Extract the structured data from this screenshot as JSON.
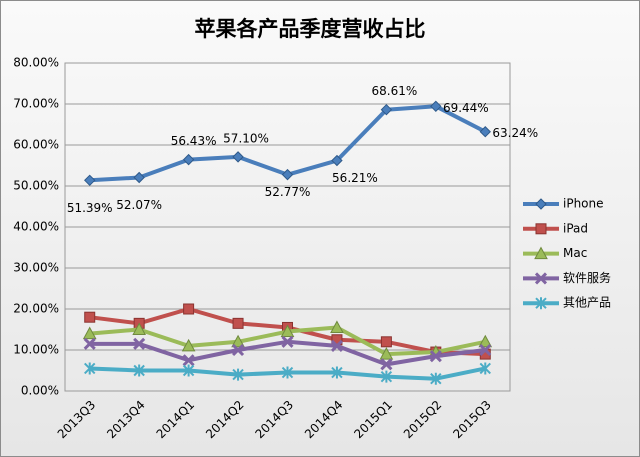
{
  "chart_data": {
    "type": "line",
    "title": "苹果各产品季度营收占比",
    "categories": [
      "2013Q3",
      "2013Q4",
      "2014Q1",
      "2014Q2",
      "2014Q3",
      "2014Q4",
      "2015Q1",
      "2015Q2",
      "2015Q3"
    ],
    "series": [
      {
        "name": "iPhone",
        "color": "#4a7ebb",
        "marker": "diamond",
        "values": [
          51.39,
          52.07,
          56.43,
          57.1,
          52.77,
          56.21,
          68.61,
          69.44,
          63.24
        ],
        "value_labels": [
          "51.39%",
          "52.07%",
          "56.43%",
          "57.10%",
          "52.77%",
          "56.21%",
          "68.61%",
          "69.44%",
          "63.24%"
        ]
      },
      {
        "name": "iPad",
        "color": "#c0504d",
        "marker": "square",
        "values": [
          18,
          16.5,
          20,
          16.5,
          15.5,
          12.5,
          12,
          9.5,
          9
        ]
      },
      {
        "name": "Mac",
        "color": "#9bbb59",
        "marker": "triangle",
        "values": [
          14,
          15,
          11,
          12,
          14.5,
          15.5,
          9,
          9.5,
          12
        ]
      },
      {
        "name": "软件服务",
        "color": "#8064a2",
        "marker": "cross",
        "values": [
          11.5,
          11.5,
          7.5,
          10,
          12,
          11,
          6.5,
          8.5,
          10
        ]
      },
      {
        "name": "其他产品",
        "color": "#4bacc6",
        "marker": "star",
        "values": [
          5.5,
          5,
          5,
          4,
          4.5,
          4.5,
          3.5,
          3,
          5.5
        ]
      }
    ],
    "ylim": [
      0,
      80
    ],
    "yticks": [
      {
        "value": 0,
        "label": "0.00%"
      },
      {
        "value": 10,
        "label": "10.00%"
      },
      {
        "value": 20,
        "label": "20.00%"
      },
      {
        "value": 30,
        "label": "30.00%"
      },
      {
        "value": 40,
        "label": "40.00%"
      },
      {
        "value": 50,
        "label": "50.00%"
      },
      {
        "value": 60,
        "label": "60.00%"
      },
      {
        "value": 70,
        "label": "70.00%"
      },
      {
        "value": 80,
        "label": "80.00%"
      }
    ],
    "grid": true,
    "legend": "right"
  }
}
